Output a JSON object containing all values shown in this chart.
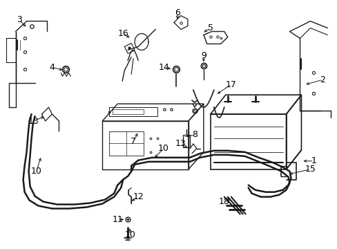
{
  "background_color": "#ffffff",
  "line_color": "#1a1a1a",
  "text_color": "#000000",
  "figsize": [
    4.89,
    3.6
  ],
  "dpi": 100,
  "font_size": 8,
  "lw": 1.0
}
